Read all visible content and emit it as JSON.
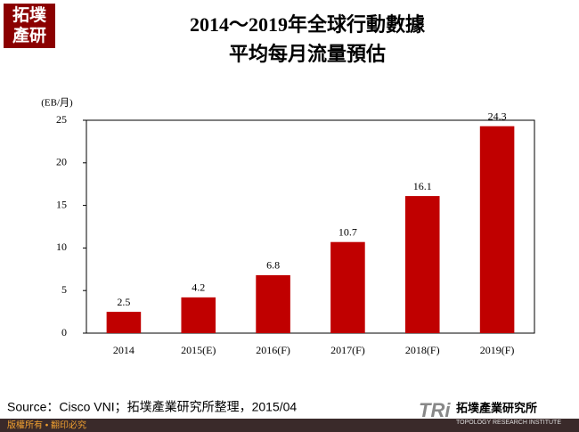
{
  "logo": {
    "line1": "拓墣",
    "line2": "產研"
  },
  "chart_data": {
    "type": "bar",
    "title": [
      "2014～2019年全球行動數據",
      "平均每月流量預估"
    ],
    "y_label": "(EB/月)",
    "categories": [
      "2014",
      "2015(E)",
      "2016(F)",
      "2017(F)",
      "2018(F)",
      "2019(F)"
    ],
    "values": [
      2.5,
      4.2,
      6.8,
      10.7,
      16.1,
      24.3
    ],
    "color": "#c00000",
    "ylim": [
      0,
      25
    ],
    "yticks": [
      0,
      5,
      10,
      15,
      20,
      25
    ],
    "grid": false
  },
  "source": "Source：Cisco VNI；拓墣產業研究所整理，2015/04",
  "footer": "版權所有 • 翻印必究",
  "brand": {
    "mark": "TRi",
    "name": "拓墣產業研究所",
    "english": "TOPOLOGY RESEARCH INSTITUTE"
  }
}
